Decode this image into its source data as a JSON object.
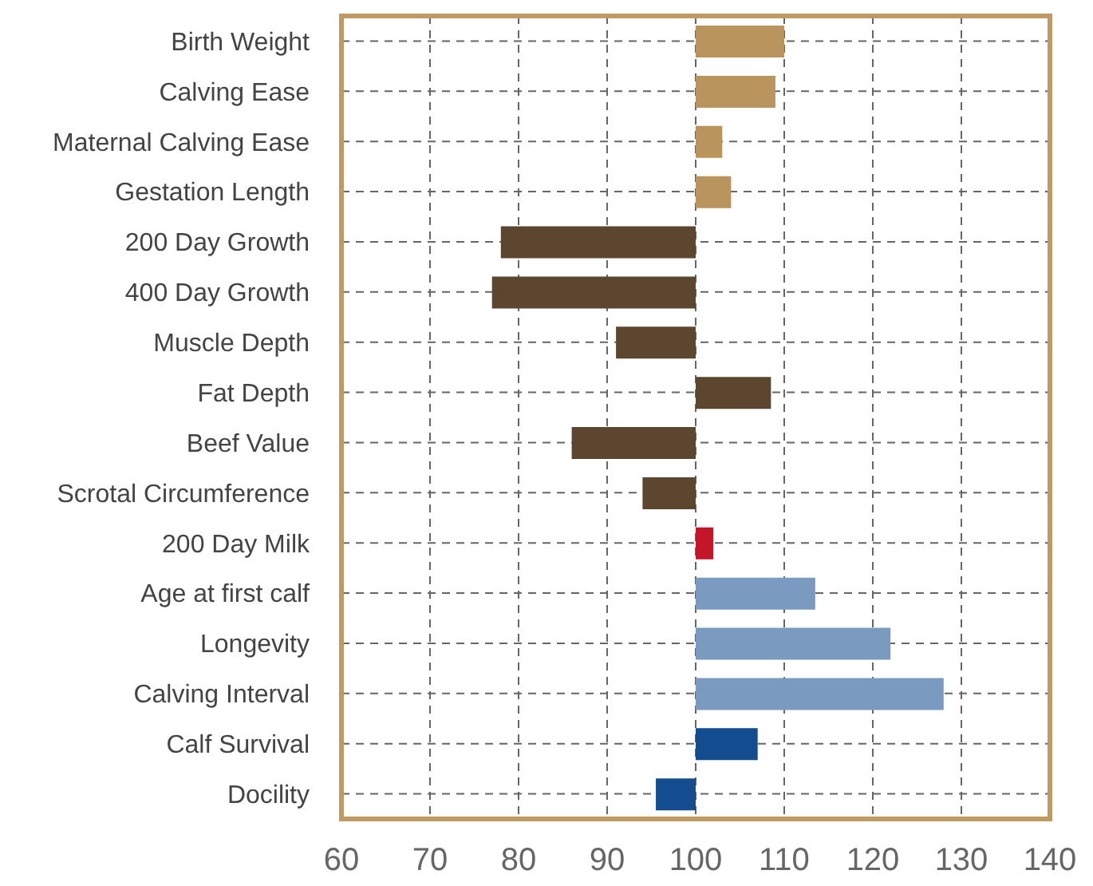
{
  "chart_data": {
    "type": "bar",
    "orientation": "horizontal",
    "categories": [
      "Birth Weight",
      "Calving Ease",
      "Maternal Calving Ease",
      "Gestation Length",
      "200 Day Growth",
      "400 Day Growth",
      "Muscle Depth",
      "Fat Depth",
      "Beef Value",
      "Scrotal Circumference",
      "200 Day Milk",
      "Age at first calf",
      "Longevity",
      "Calving Interval",
      "Calf Survival",
      "Docility"
    ],
    "base": [
      100,
      100,
      100,
      100,
      100,
      100,
      100,
      100,
      100,
      100,
      100,
      100,
      100,
      100,
      100,
      100
    ],
    "values": [
      10,
      9,
      3,
      4,
      -22,
      -23,
      -9,
      8.5,
      -14,
      -6,
      2,
      13.5,
      22,
      28,
      7,
      -4.5
    ],
    "colors": [
      "#b9945c",
      "#b9945c",
      "#b9945c",
      "#b9945c",
      "#5c4630",
      "#5c4630",
      "#5c4630",
      "#5c4630",
      "#5c4630",
      "#5c4630",
      "#c41629",
      "#7a9abf",
      "#7a9abf",
      "#7a9abf",
      "#134d8f",
      "#134d8f"
    ],
    "xlim": [
      60,
      140
    ],
    "xticks": [
      60,
      70,
      80,
      90,
      100,
      110,
      120,
      130,
      140
    ],
    "grid": true
  }
}
